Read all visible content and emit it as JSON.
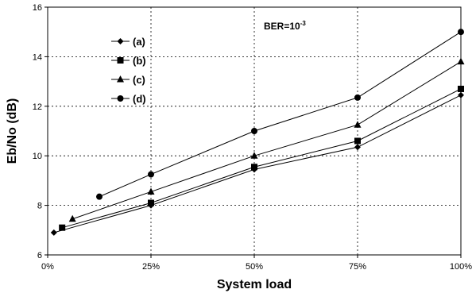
{
  "chart_data": {
    "type": "line",
    "xlabel": "System load",
    "ylabel": "Eb/No (dB)",
    "xlim": [
      0,
      100
    ],
    "ylim": [
      6,
      16
    ],
    "x_ticks": [
      0,
      25,
      50,
      75,
      100
    ],
    "x_tick_labels": [
      "0%",
      "25%",
      "50%",
      "75%",
      "100%"
    ],
    "y_ticks": [
      6,
      8,
      10,
      12,
      14,
      16
    ],
    "y_tick_labels": [
      "6",
      "8",
      "10",
      "12",
      "14",
      "16"
    ],
    "grid": true,
    "legend_position": "upper-left",
    "annotation": {
      "base": "BER=10",
      "exponent": "-3"
    },
    "series": [
      {
        "name": "(a)",
        "marker": "diamond",
        "x": [
          1.5,
          25,
          50,
          75,
          100
        ],
        "y": [
          6.9,
          8.0,
          9.45,
          10.35,
          12.45
        ]
      },
      {
        "name": "(b)",
        "marker": "square",
        "x": [
          3.5,
          25,
          50,
          75,
          100
        ],
        "y": [
          7.1,
          8.1,
          9.55,
          10.6,
          12.7
        ]
      },
      {
        "name": "(c)",
        "marker": "triangle",
        "x": [
          6,
          25,
          50,
          75,
          100
        ],
        "y": [
          7.45,
          8.55,
          10.0,
          11.25,
          13.8
        ]
      },
      {
        "name": "(d)",
        "marker": "circle",
        "x": [
          12.5,
          25,
          50,
          75,
          100
        ],
        "y": [
          8.35,
          9.25,
          11.0,
          12.35,
          15.0
        ]
      }
    ]
  }
}
